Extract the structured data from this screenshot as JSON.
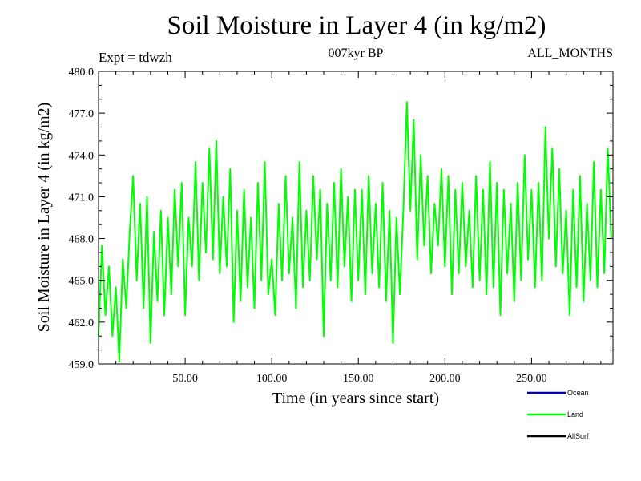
{
  "chart_data": {
    "type": "line",
    "title": "Soil Moisture in Layer 4 (in kg/m2)",
    "subtitle": "007kyr BP",
    "expt_label": "Expt = tdwzh",
    "period_label": "ALL_MONTHS",
    "xlabel": "Time (in years since start)",
    "ylabel": "Soil Moisture in Layer 4 (in kg/m2)",
    "xlim": [
      0,
      297
    ],
    "ylim": [
      459.0,
      480.0
    ],
    "x_ticks": [
      50,
      100,
      150,
      200,
      250
    ],
    "x_tick_labels": [
      "50.00",
      "100.00",
      "150.00",
      "200.00",
      "250.00"
    ],
    "y_ticks": [
      459,
      462,
      465,
      468,
      471,
      474,
      477,
      480
    ],
    "y_tick_labels": [
      "459.0",
      "462.0",
      "465.0",
      "468.0",
      "471.0",
      "474.0",
      "477.0",
      "480.0"
    ],
    "legend_position": "bottom-right",
    "series": [
      {
        "name": "Ocean",
        "color": "#0000cc",
        "x": [],
        "y": []
      },
      {
        "name": "Land",
        "color": "#00ff00",
        "x": [
          0,
          2,
          4,
          6,
          8,
          10,
          12,
          14,
          16,
          18,
          20,
          22,
          24,
          26,
          28,
          30,
          32,
          34,
          36,
          38,
          40,
          42,
          44,
          46,
          48,
          50,
          52,
          54,
          56,
          58,
          60,
          62,
          64,
          66,
          68,
          70,
          72,
          74,
          76,
          78,
          80,
          82,
          84,
          86,
          88,
          90,
          92,
          94,
          96,
          98,
          100,
          102,
          104,
          106,
          108,
          110,
          112,
          114,
          116,
          118,
          120,
          122,
          124,
          126,
          128,
          130,
          132,
          134,
          136,
          138,
          140,
          142,
          144,
          146,
          148,
          150,
          152,
          154,
          156,
          158,
          160,
          162,
          164,
          166,
          168,
          170,
          172,
          174,
          176,
          178,
          180,
          182,
          184,
          186,
          188,
          190,
          192,
          194,
          196,
          198,
          200,
          202,
          204,
          206,
          208,
          210,
          212,
          214,
          216,
          218,
          220,
          222,
          224,
          226,
          228,
          230,
          232,
          234,
          236,
          238,
          240,
          242,
          244,
          246,
          248,
          250,
          252,
          254,
          256,
          258,
          260,
          262,
          264,
          266,
          268,
          270,
          272,
          274,
          276,
          278,
          280,
          282,
          284,
          286,
          288,
          290,
          292,
          294,
          296
        ],
        "y": [
          461.0,
          467.5,
          462.5,
          466.0,
          461.0,
          464.5,
          459.2,
          466.5,
          463.0,
          468.5,
          472.5,
          465.0,
          470.5,
          463.0,
          471.0,
          460.5,
          468.5,
          463.5,
          470.0,
          462.5,
          469.5,
          464.0,
          471.5,
          466.0,
          472.0,
          462.5,
          469.5,
          466.0,
          473.5,
          465.0,
          472.0,
          467.0,
          474.5,
          466.5,
          475.0,
          465.5,
          471.0,
          466.0,
          473.0,
          462.0,
          470.0,
          463.5,
          471.5,
          464.5,
          469.5,
          463.0,
          472.0,
          465.0,
          473.5,
          464.0,
          466.5,
          462.5,
          470.5,
          465.0,
          472.5,
          465.5,
          469.5,
          463.0,
          473.5,
          464.5,
          470.0,
          465.0,
          472.5,
          466.5,
          471.5,
          461.0,
          470.5,
          465.0,
          472.0,
          464.5,
          473.0,
          466.0,
          471.0,
          463.5,
          471.5,
          465.0,
          471.5,
          464.0,
          472.5,
          465.5,
          470.5,
          464.5,
          472.0,
          463.5,
          470.0,
          460.5,
          469.5,
          464.0,
          470.0,
          477.8,
          470.0,
          476.5,
          466.5,
          474.0,
          467.5,
          472.5,
          465.5,
          470.5,
          467.5,
          473.0,
          466.0,
          472.5,
          464.0,
          471.5,
          465.5,
          472.0,
          466.0,
          470.0,
          464.5,
          472.5,
          465.0,
          471.5,
          464.0,
          473.5,
          464.5,
          472.0,
          462.5,
          471.5,
          465.5,
          470.5,
          463.5,
          472.0,
          465.0,
          474.0,
          466.5,
          471.5,
          464.5,
          472.0,
          465.0,
          476.0,
          468.0,
          474.5,
          466.0,
          473.0,
          465.5,
          470.0,
          462.5,
          471.5,
          464.5,
          472.5,
          463.5,
          470.5,
          465.0,
          473.5,
          464.5,
          471.5,
          465.5,
          474.5,
          468.0
        ]
      },
      {
        "name": "AllSurf",
        "color": "#000000",
        "x": [],
        "y": []
      }
    ]
  }
}
